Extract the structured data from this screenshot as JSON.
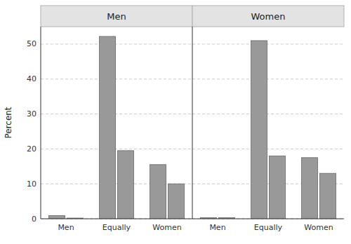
{
  "chart_data": [
    {
      "type": "bar",
      "title": "Men",
      "categories": [
        "Men",
        "Equally",
        "Women"
      ],
      "series": [
        {
          "color": "#999999",
          "values": [
            0.9,
            52.2,
            15.5
          ]
        },
        {
          "color": "#999999",
          "values": [
            0.2,
            19.5,
            10.0
          ]
        }
      ],
      "ylabel": "Percent",
      "ylim": [
        0,
        55
      ],
      "yticks": [
        0,
        10,
        20,
        30,
        40,
        50
      ],
      "grid": true
    },
    {
      "type": "bar",
      "title": "Women",
      "categories": [
        "Men",
        "Equally",
        "Women"
      ],
      "series": [
        {
          "color": "#999999",
          "values": [
            0.3,
            51.0,
            17.5
          ]
        },
        {
          "color": "#999999",
          "values": [
            0.3,
            18.0,
            13.0
          ]
        }
      ],
      "ylim": [
        0,
        55
      ],
      "yticks": [
        0,
        10,
        20,
        30,
        40,
        50
      ],
      "grid": true,
      "tick_labels": "x"
    }
  ]
}
